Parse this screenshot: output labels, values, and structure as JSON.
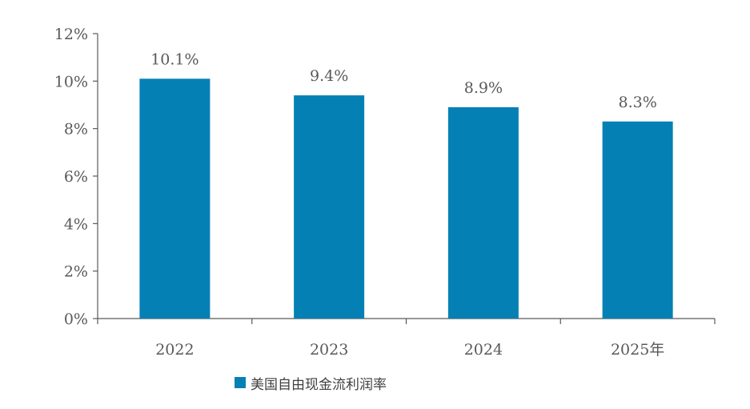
{
  "chart_data": {
    "type": "bar",
    "categories": [
      "2022",
      "2023",
      "2024",
      "2025年"
    ],
    "series": [
      {
        "name": "美国自由现金流利润率",
        "values": [
          10.1,
          9.4,
          8.9,
          8.3
        ],
        "data_labels": [
          "10.1%",
          "9.4%",
          "8.9%",
          "8.3%"
        ]
      }
    ],
    "yticks": [
      {
        "value": 0,
        "label": "0%"
      },
      {
        "value": 2,
        "label": "2%"
      },
      {
        "value": 4,
        "label": "4%"
      },
      {
        "value": 6,
        "label": "6%"
      },
      {
        "value": 8,
        "label": "8%"
      },
      {
        "value": 10,
        "label": "10%"
      },
      {
        "value": 12,
        "label": "12%"
      }
    ],
    "ylim": [
      0,
      12
    ],
    "grid": false,
    "legend": "bottom",
    "color": "#0580b5",
    "axis_color": "#595959"
  }
}
